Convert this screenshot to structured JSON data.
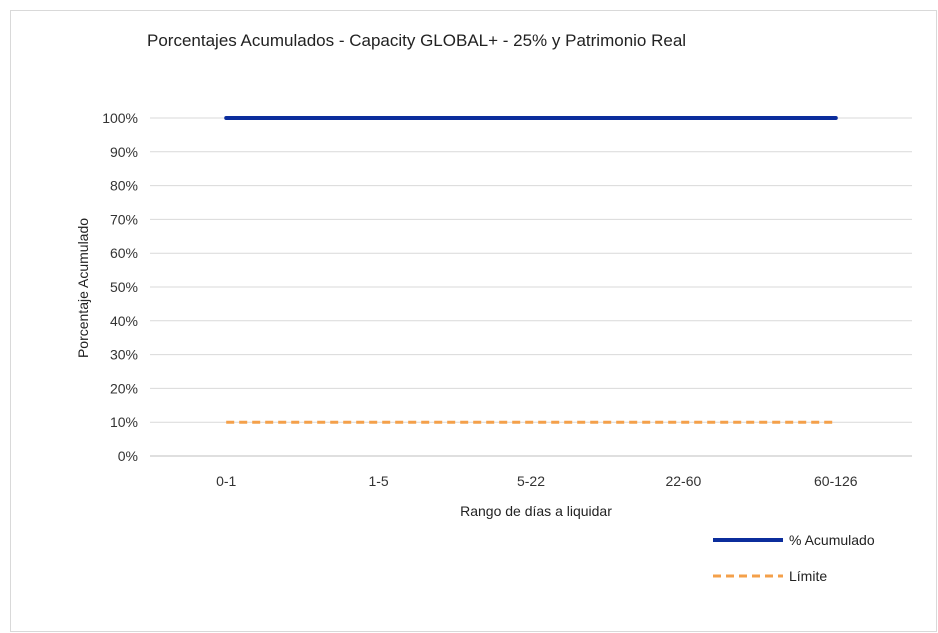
{
  "chart_data": {
    "type": "line",
    "title": "Porcentajes Acumulados - Capacity GLOBAL+ - 25% y Patrimonio Real",
    "xlabel": "Rango de días a liquidar",
    "ylabel": "Porcentaje Acumulado",
    "categories": [
      "0-1",
      "1-5",
      "5-22",
      "22-60",
      "60-126"
    ],
    "yticks": [
      "0%",
      "10%",
      "20%",
      "30%",
      "40%",
      "50%",
      "60%",
      "70%",
      "80%",
      "90%",
      "100%"
    ],
    "ylim": [
      0,
      100
    ],
    "grid": true,
    "legend_position": "bottom-right",
    "series": [
      {
        "name": "% Acumulado",
        "values": [
          100,
          100,
          100,
          100,
          100
        ],
        "color": "#0b2d9c",
        "style": "solid"
      },
      {
        "name": "Límite",
        "values": [
          10,
          10,
          10,
          10,
          10
        ],
        "color": "#f4a04a",
        "style": "dashed"
      }
    ]
  }
}
